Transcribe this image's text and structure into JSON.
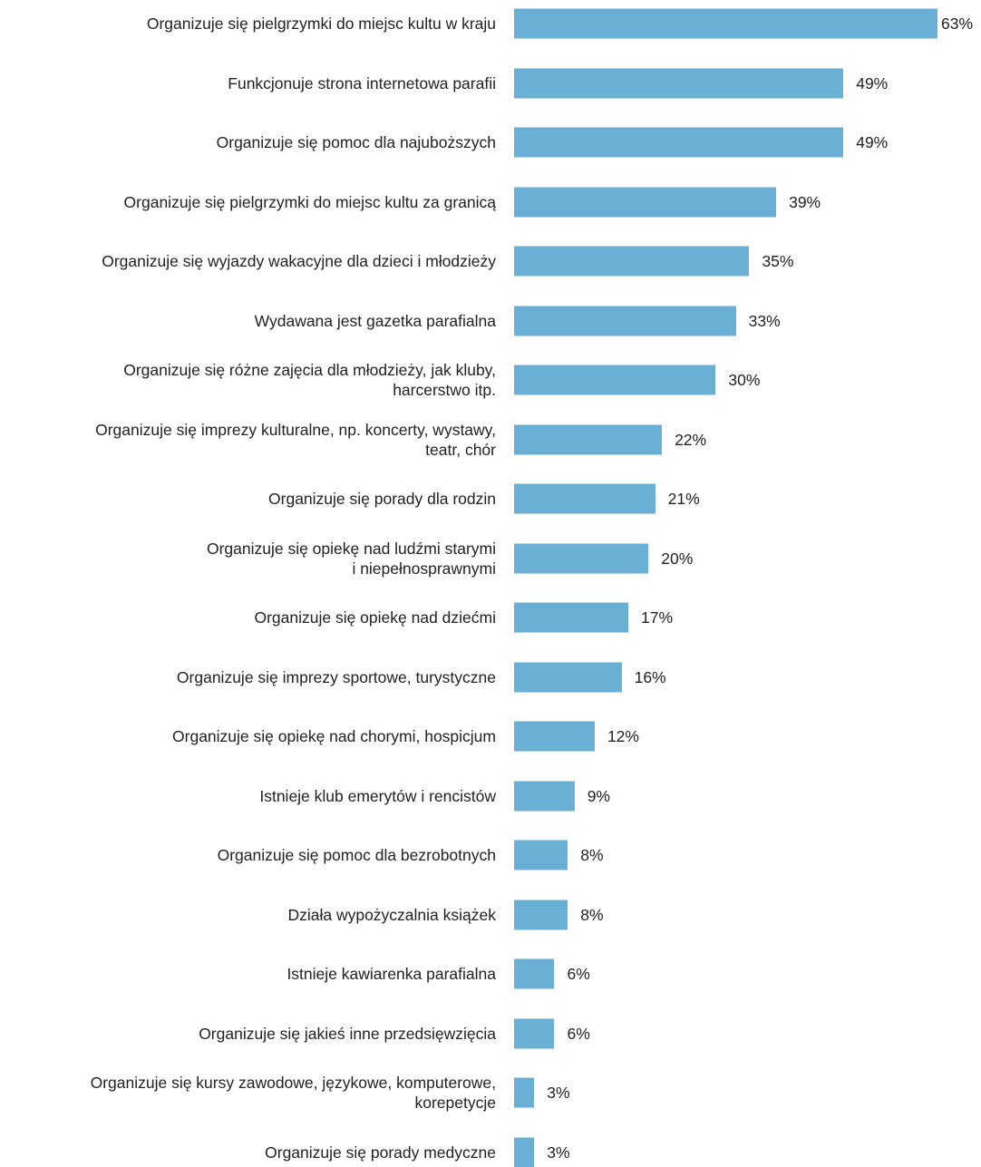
{
  "chart_data": {
    "type": "bar",
    "orientation": "horizontal",
    "color": "#6aafd4",
    "categories": [
      "Organizuje się pielgrzymki do miejsc kultu w kraju",
      "Funkcjonuje strona internetowa parafii",
      "Organizuje się pomoc dla najuboższych",
      "Organizuje się pielgrzymki do miejsc kultu za granicą",
      "Organizuje się wyjazdy wakacyjne dla dzieci i młodzieży",
      "Wydawana jest gazetka parafialna",
      "Organizuje się różne zajęcia dla młodzieży, jak kluby,\nharcerstwo itp.",
      "Organizuje się imprezy kulturalne, np. koncerty, wystawy,\nteatr, chór",
      "Organizuje się porady dla rodzin",
      "Organizuje się opiekę nad ludźmi starymi\ni niepełnosprawnymi",
      "Organizuje się opiekę nad dziećmi",
      "Organizuje się imprezy sportowe, turystyczne",
      "Organizuje się opiekę nad chorymi, hospicjum",
      "Istnieje klub emerytów i rencistów",
      "Organizuje się pomoc dla bezrobotnych",
      "Działa wypożyczalnia książek",
      "Istnieje kawiarenka parafialna",
      "Organizuje się jakieś inne przedsięwzięcia",
      "Organizuje się kursy zawodowe, językowe, komputerowe,\nkorepetycje",
      "Organizuje się porady medyczne"
    ],
    "values": [
      63,
      49,
      49,
      39,
      35,
      33,
      30,
      22,
      21,
      20,
      17,
      16,
      12,
      9,
      8,
      8,
      6,
      6,
      3,
      3
    ],
    "value_labels": [
      "63%",
      "49%",
      "49%",
      "39%",
      "35%",
      "33%",
      "30%",
      "22%",
      "21%",
      "20%",
      "17%",
      "16%",
      "12%",
      "9%",
      "8%",
      "8%",
      "6%",
      "6%",
      "3%",
      "3%"
    ]
  }
}
